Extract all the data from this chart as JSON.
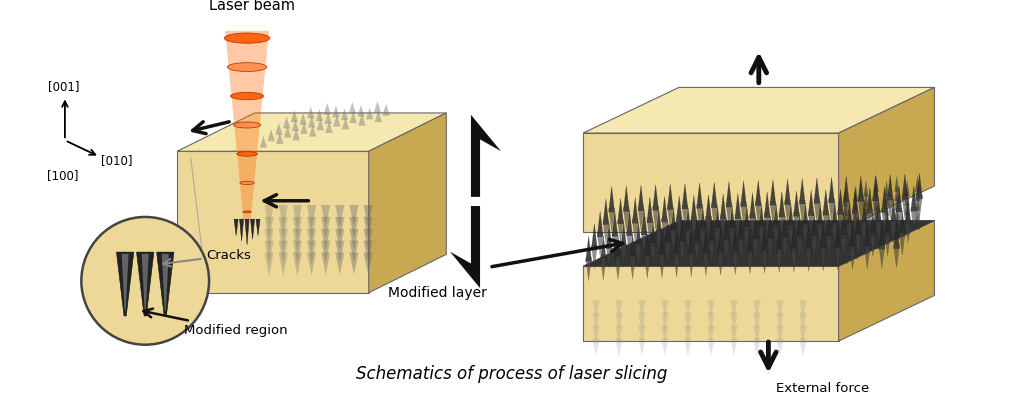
{
  "title": "Schematics of process of laser slicing",
  "title_fontsize": 12,
  "bg_color": "#ffffff",
  "diamond_face": "#EDD898",
  "diamond_top": "#F5E8B0",
  "diamond_side": "#C8A850",
  "laser_color": "#FF5500",
  "laser_inner": "#FF8844",
  "arrow_color": "#111111",
  "label_laser": "Laser beam",
  "label_cracks": "Cracks",
  "label_modified_region": "Modified region",
  "label_modified_layer": "Modified layer",
  "label_external": "External force",
  "label_001": "[001]",
  "label_010": "[010]",
  "label_100": "[100]",
  "circle_fill": "#EDD898",
  "spike_color": "#444444",
  "spike_light": "#888888"
}
